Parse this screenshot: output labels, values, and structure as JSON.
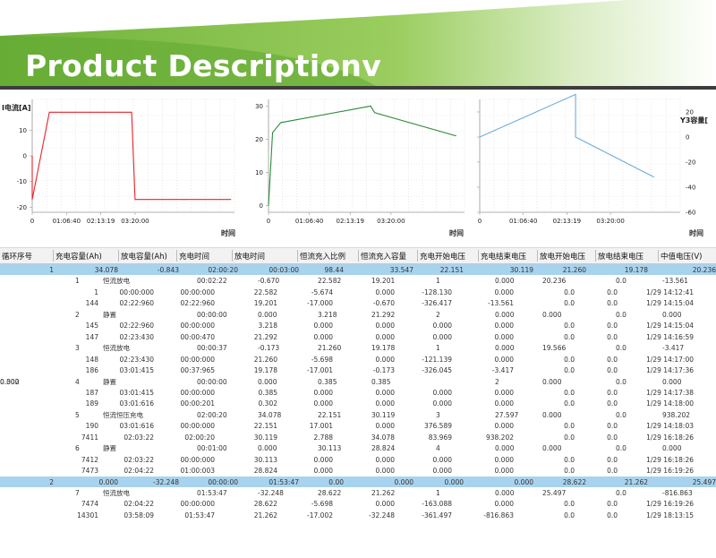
{
  "banner": {
    "title": "Product Descriptionv",
    "bg_color": "#74b63b"
  },
  "charts": {
    "left": {
      "y_label": "I电流[A]",
      "y_ticks": [
        "10",
        "0",
        "-10",
        "-20"
      ],
      "x_ticks": [
        "0",
        "01:06:40",
        "02:13:19",
        "03:20:00"
      ],
      "x_unit": "时间",
      "color": "#e8232a"
    },
    "mid": {
      "y_ticks": [
        "30",
        "20",
        "10",
        "0"
      ],
      "x_ticks": [
        "0",
        "01:06:40",
        "02:13:19",
        "03:20:00"
      ],
      "x_unit": "时间",
      "color": "#2e8b3e"
    },
    "right": {
      "y_label": "Y3容量[",
      "y_ticks": [
        "20",
        "0",
        "-20",
        "-40",
        "-60"
      ],
      "x_ticks": [
        "0",
        "01:06:40",
        "02:13:19",
        "03:20:00"
      ],
      "x_unit": "时间",
      "color": "#6aaee0"
    }
  },
  "chart_data": [
    {
      "type": "line",
      "title": "",
      "xlabel": "时间",
      "ylabel": "I电流[A]",
      "x": [
        "0",
        "01:06:40",
        "02:13:19",
        "03:20:00"
      ],
      "series": [
        {
          "name": "I电流[A]",
          "points": [
            [
              0,
              0
            ],
            [
              0,
              -17
            ],
            [
              0.5,
              17
            ],
            [
              2.9,
              17
            ],
            [
              3.0,
              -17
            ],
            [
              5.8,
              -17
            ]
          ]
        }
      ],
      "ylim": [
        -22,
        22
      ]
    },
    {
      "type": "line",
      "title": "",
      "xlabel": "时间",
      "ylabel": "",
      "x": [
        "0",
        "01:06:40",
        "02:13:19",
        "03:20:00"
      ],
      "series": [
        {
          "name": "",
          "points": [
            [
              0,
              0
            ],
            [
              0.1,
              22
            ],
            [
              0.3,
              25
            ],
            [
              2.5,
              30
            ],
            [
              2.6,
              28
            ],
            [
              4.6,
              21
            ]
          ]
        }
      ],
      "ylim": [
        -2,
        32
      ]
    },
    {
      "type": "line",
      "title": "",
      "xlabel": "时间",
      "ylabel": "Y3容量[",
      "x": [
        "0",
        "01:06:40",
        "02:13:19",
        "03:20:00"
      ],
      "series": [
        {
          "name": "Y3容量[",
          "points": [
            [
              0,
              0
            ],
            [
              2.2,
              34
            ],
            [
              2.2,
              0
            ],
            [
              4.0,
              -32
            ]
          ]
        }
      ],
      "ylim": [
        -60,
        30
      ]
    }
  ],
  "table": {
    "headers": [
      "循环序号",
      "充电容量(Ah)",
      "放电容量(Ah)",
      "充电时间",
      "放电时间",
      "恒流充入比例",
      "恒流充入容量",
      "充电开始电压",
      "充电结束电压",
      "放电开始电压",
      "放电结束电压",
      "中值电压(V)"
    ],
    "rows": [
      {
        "sel": true,
        "exp": "—",
        "cells": [
          "1",
          "34.078",
          "-0.843",
          "02:00:20",
          "00:03:00",
          "98.44",
          "33.547",
          "22.151",
          "30.119",
          "21.260",
          "19.178",
          "20.236"
        ]
      },
      {
        "exp": "—",
        "cells": [
          "",
          "1",
          "恒流放电",
          "00:02:22",
          "-0.670",
          "22.582",
          "19.201",
          "",
          "1",
          "0.000",
          "20.236",
          "",
          "0.0",
          "-13.561"
        ]
      },
      {
        "exp": "+",
        "cells": [
          "",
          "",
          "1",
          "00:00:000",
          "00:00:000",
          "22.582",
          "-5.674",
          "0.000",
          "-128.130",
          "0.000",
          "0.0",
          "0.0",
          "1/29 14:12:41"
        ]
      },
      {
        "exp": "",
        "cells": [
          "",
          "",
          "144",
          "02:22:960",
          "02:22:960",
          "19.201",
          "-17.000",
          "-0.670",
          "-326.417",
          "-13.561",
          "0.0",
          "0.0",
          "1/29 14:15:04"
        ]
      },
      {
        "exp": "—",
        "cells": [
          "",
          "2",
          "静置",
          "00:00:00",
          "0.000",
          "3.218",
          "21.292",
          "",
          "2",
          "0.000",
          "0.000",
          "",
          "0.0",
          "0.000"
        ]
      },
      {
        "exp": "+",
        "cells": [
          "",
          "",
          "145",
          "02:22:960",
          "00:00:000",
          "3.218",
          "0.000",
          "0.000",
          "0.000",
          "0.000",
          "0.0",
          "0.0",
          "1/29 14:15:04"
        ]
      },
      {
        "exp": "",
        "cells": [
          "",
          "",
          "147",
          "02:23:430",
          "00:00:470",
          "21.292",
          "0.000",
          "0.000",
          "0.000",
          "0.000",
          "0.0",
          "0.0",
          "1/29 14:16:59"
        ]
      },
      {
        "exp": "—",
        "cells": [
          "",
          "3",
          "恒流放电",
          "00:00:37",
          "-0.173",
          "21.260",
          "19.178",
          "",
          "1",
          "0.000",
          "19.566",
          "",
          "0.0",
          "-3.417"
        ]
      },
      {
        "exp": "+",
        "cells": [
          "",
          "",
          "148",
          "02:23:430",
          "00:00:000",
          "21.260",
          "-5.698",
          "0.000",
          "-121.139",
          "0.000",
          "0.0",
          "0.0",
          "1/29 14:17:00"
        ]
      },
      {
        "exp": "",
        "cells": [
          "",
          "",
          "186",
          "03:01:415",
          "00:37:965",
          "19.178",
          "-17.001",
          "-0.173",
          "-326.045",
          "-3.417",
          "0.0",
          "0.0",
          "1/29 14:17:36"
        ]
      },
      {
        "exp": "—",
        "cells": [
          "",
          "4",
          "静置",
          "00:00:00",
          "0.000",
          "0.385",
          "0.385",
          "0.302",
          "",
          "2",
          "0.000",
          "0.000",
          "0.0",
          "0.000"
        ]
      },
      {
        "exp": "+",
        "cells": [
          "",
          "",
          "187",
          "03:01:415",
          "00:00:000",
          "0.385",
          "0.000",
          "0.000",
          "0.000",
          "0.000",
          "0.0",
          "0.0",
          "1/29 14:17:38"
        ]
      },
      {
        "exp": "",
        "cells": [
          "",
          "",
          "189",
          "03:01:616",
          "00:00:201",
          "0.302",
          "0.000",
          "0.000",
          "0.000",
          "0.000",
          "0.0",
          "0.0",
          "1/29 14:18:00"
        ]
      },
      {
        "exp": "—",
        "cells": [
          "",
          "5",
          "恒流恒压充电",
          "02:00:20",
          "34.078",
          "22.151",
          "30.119",
          "",
          "3",
          "27.597",
          "0.000",
          "",
          "0.0",
          "938.202"
        ]
      },
      {
        "exp": "+",
        "cells": [
          "",
          "",
          "190",
          "03:01:616",
          "00:00:000",
          "22.151",
          "17.001",
          "0.000",
          "376.589",
          "0.000",
          "0.0",
          "0.0",
          "1/29 14:18:03"
        ]
      },
      {
        "exp": "",
        "cells": [
          "",
          "",
          "7411",
          "02:03:22",
          "02:00:20",
          "30.119",
          "2.788",
          "34.078",
          "83.969",
          "938.202",
          "0.0",
          "0.0",
          "1/29 16:18:26"
        ]
      },
      {
        "exp": "—",
        "cells": [
          "",
          "6",
          "静置",
          "00:01:00",
          "0.000",
          "30.113",
          "28.824",
          "",
          "4",
          "0.000",
          "0.000",
          "",
          "0.0",
          "0.000"
        ]
      },
      {
        "exp": "+",
        "cells": [
          "",
          "",
          "7412",
          "02:03:22",
          "00:00:000",
          "30.113",
          "0.000",
          "0.000",
          "0.000",
          "0.000",
          "0.0",
          "0.0",
          "1/29 16:18:26"
        ]
      },
      {
        "exp": "",
        "cells": [
          "",
          "",
          "7473",
          "02:04:22",
          "01:00:003",
          "28.824",
          "0.000",
          "0.000",
          "0.000",
          "0.000",
          "0.0",
          "0.0",
          "1/29 16:19:26"
        ]
      },
      {
        "sel": true,
        "exp": "—",
        "cells": [
          "2",
          "0.000",
          "-32.248",
          "00:00:00",
          "01:53:47",
          "0.00",
          "0.000",
          "0.000",
          "0.000",
          "28.622",
          "21.262",
          "25.497"
        ]
      },
      {
        "exp": "—",
        "cells": [
          "",
          "7",
          "恒流放电",
          "01:53:47",
          "-32.248",
          "28.622",
          "21.262",
          "",
          "1",
          "0.000",
          "25.497",
          "",
          "0.0",
          "-816.863"
        ]
      },
      {
        "exp": "+",
        "cells": [
          "",
          "",
          "7474",
          "02:04:22",
          "00:00:000",
          "28.622",
          "-5.698",
          "0.000",
          "-163.088",
          "0.000",
          "0.0",
          "0.0",
          "1/29 16:19:26"
        ]
      },
      {
        "exp": "",
        "cells": [
          "",
          "",
          "14301",
          "03:58:09",
          "01:53:47",
          "21.262",
          "-17.002",
          "-32.248",
          "-361.497",
          "-816.863",
          "0.0",
          "0.0",
          "1/29 18:13:15"
        ]
      }
    ]
  }
}
